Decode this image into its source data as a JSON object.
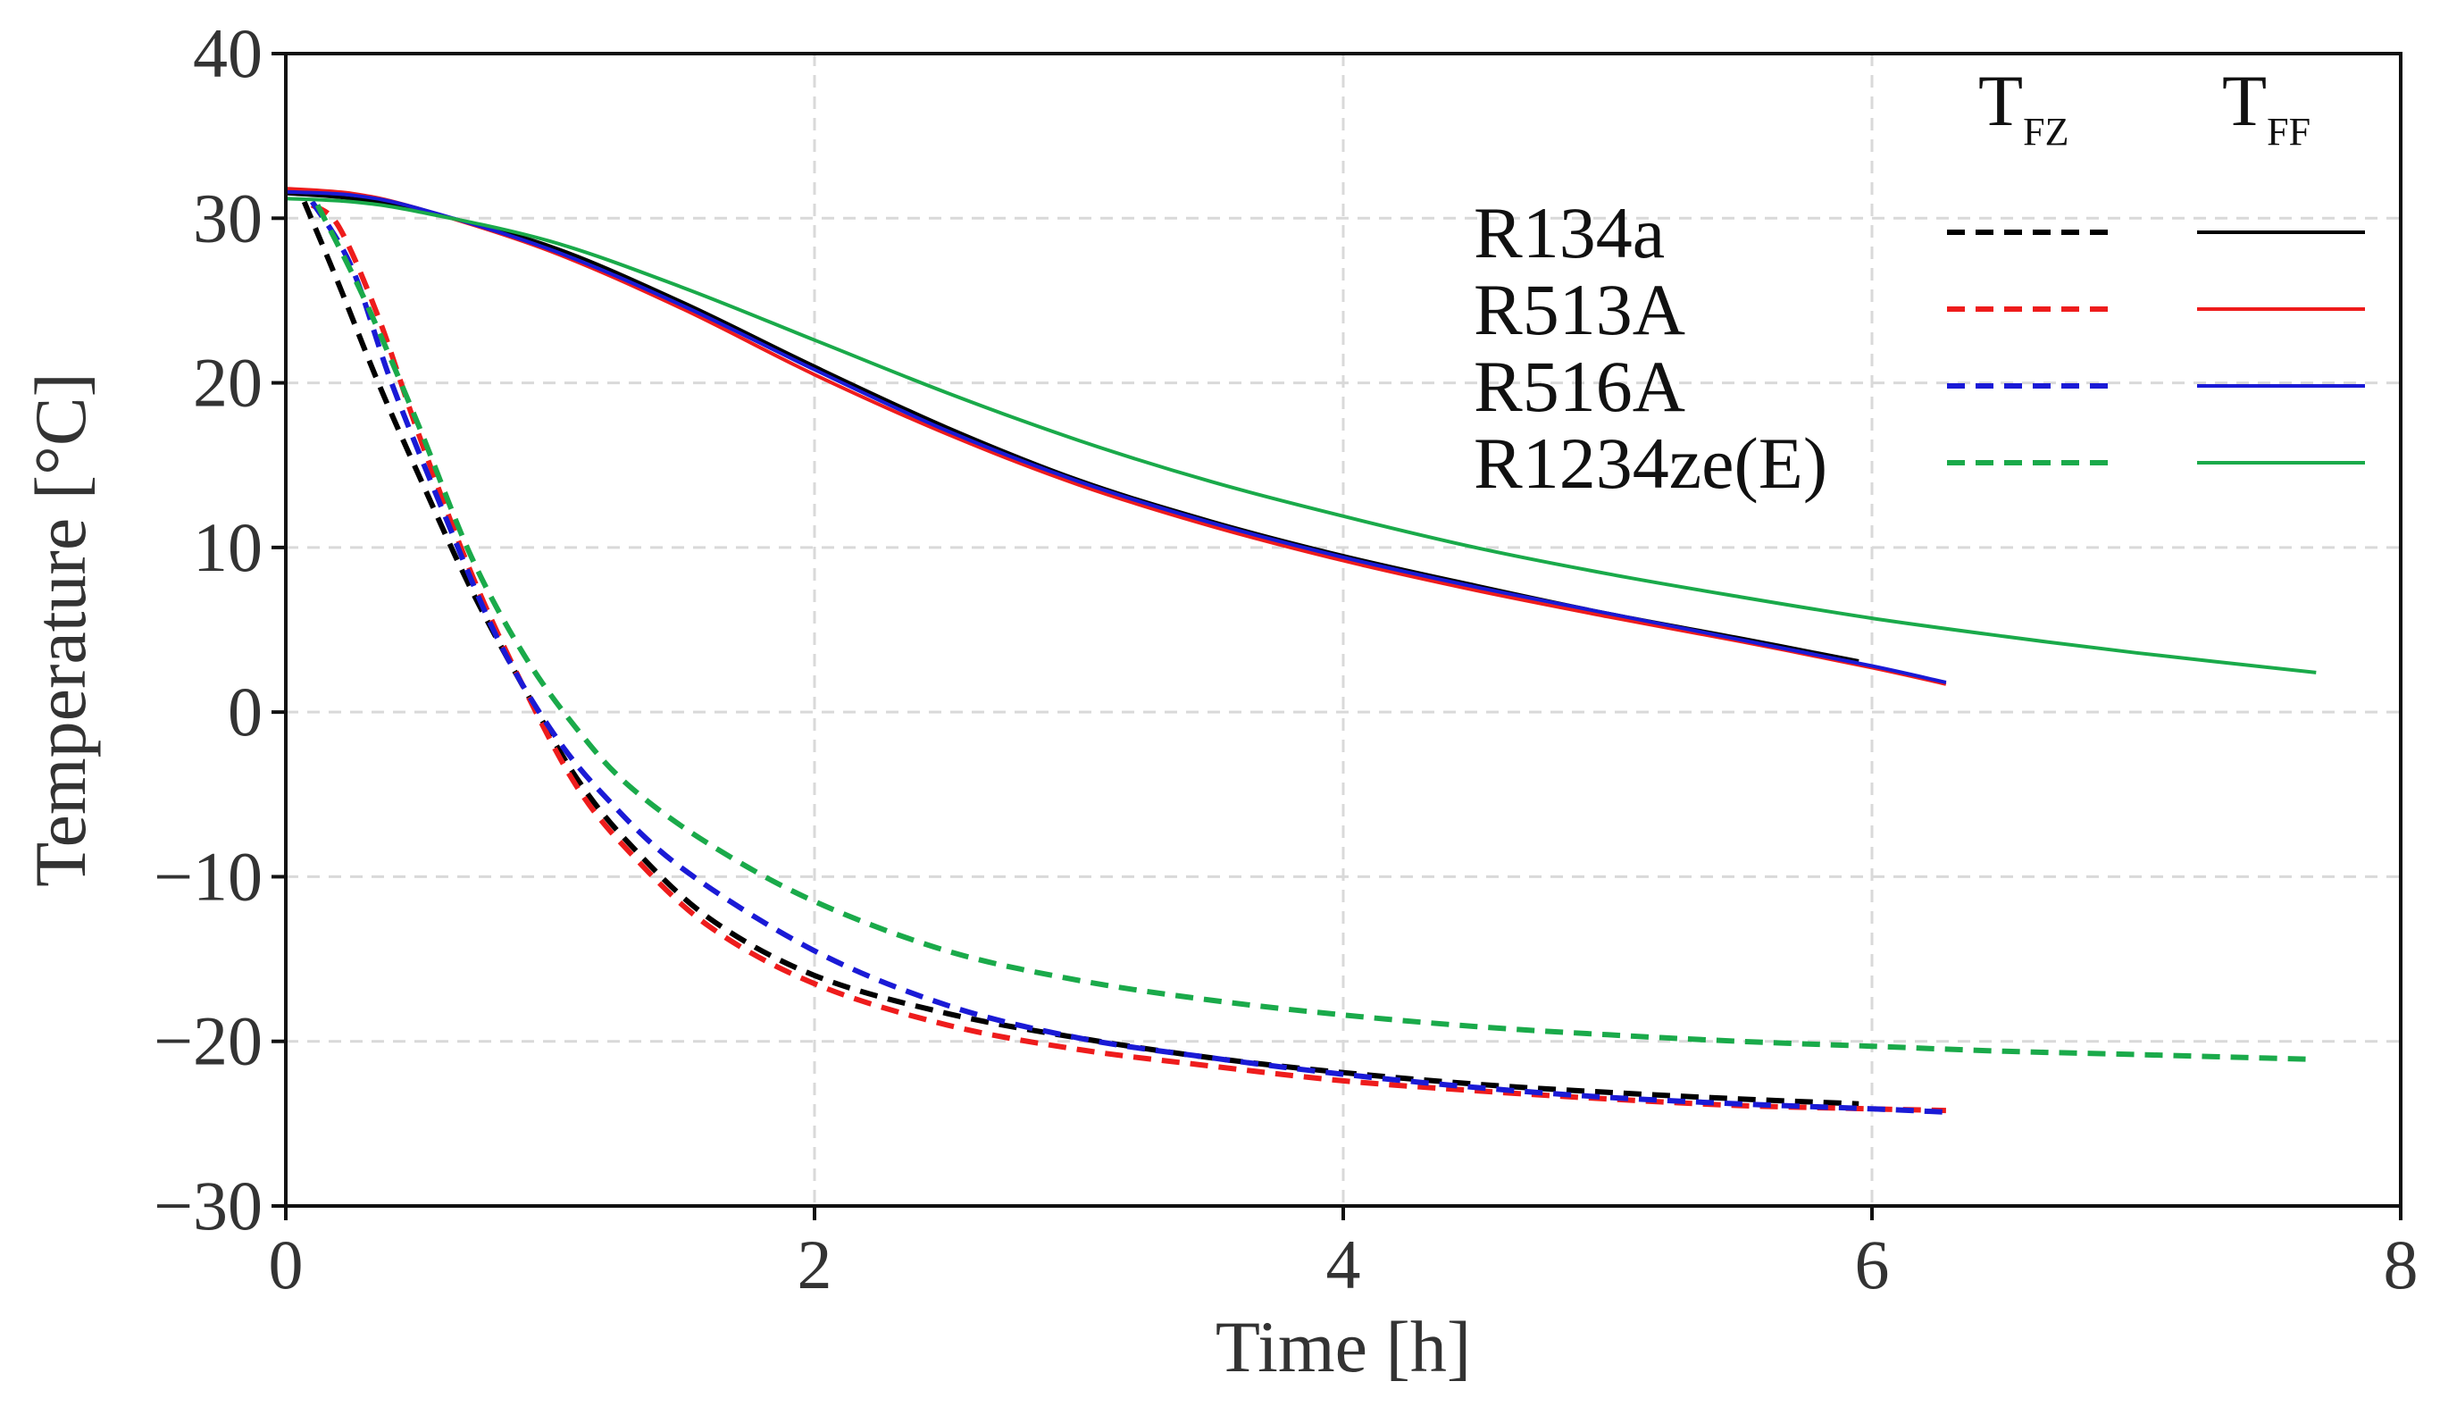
{
  "chart_data": {
    "type": "line",
    "title": "",
    "xlabel": "Time [h]",
    "ylabel": "Temperature [°C]",
    "xlim": [
      0,
      8
    ],
    "ylim": [
      -30,
      40
    ],
    "xticks": [
      0,
      2,
      4,
      6,
      8
    ],
    "xtick_labels": [
      "0",
      "2",
      "4",
      "6",
      "8"
    ],
    "yticks": [
      -30,
      -20,
      -10,
      0,
      10,
      20,
      30,
      40
    ],
    "ytick_labels": [
      "−30",
      "−20",
      "−10",
      "0",
      "10",
      "20",
      "30",
      "40"
    ],
    "grid": true,
    "legend": {
      "placement": "top-right",
      "column_headers": [
        {
          "main": "T",
          "sub": "FZ",
          "style": "dashed"
        },
        {
          "main": "T",
          "sub": "FF",
          "style": "solid"
        }
      ],
      "entries": [
        "R134a",
        "R513A",
        "R516A",
        "R1234ze(E)"
      ]
    },
    "series": [
      {
        "name": "R134a",
        "color": "#000000",
        "T_FF": {
          "x": [
            0,
            0.25,
            0.5,
            1,
            1.5,
            2,
            2.5,
            3,
            3.5,
            4,
            4.5,
            5,
            5.5,
            5.95
          ],
          "y": [
            31.5,
            31.2,
            30.5,
            28.3,
            24.9,
            21.0,
            17.3,
            14.1,
            11.6,
            9.5,
            7.7,
            6.0,
            4.5,
            3.1
          ]
        },
        "T_FZ": {
          "x": [
            0.07,
            0.2,
            0.35,
            0.5,
            0.7,
            0.9,
            1.1,
            1.3,
            1.6,
            2.0,
            2.5,
            3.0,
            3.5,
            4.0,
            4.5,
            5.0,
            5.5,
            5.95
          ],
          "y": [
            31.0,
            26.0,
            20.0,
            14.5,
            7.5,
            1.5,
            -4.0,
            -8.0,
            -12.5,
            -16.0,
            -18.3,
            -19.8,
            -21.0,
            -21.9,
            -22.6,
            -23.1,
            -23.5,
            -23.8
          ]
        }
      },
      {
        "name": "R513A",
        "color": "#ee1c1c",
        "T_FF": {
          "x": [
            0,
            0.25,
            0.5,
            1,
            1.5,
            2,
            2.5,
            3,
            3.5,
            4,
            4.5,
            5,
            5.5,
            6,
            6.28
          ],
          "y": [
            31.8,
            31.5,
            30.6,
            28.0,
            24.5,
            20.5,
            16.9,
            13.8,
            11.3,
            9.2,
            7.4,
            5.8,
            4.3,
            2.7,
            1.7
          ]
        },
        "T_FZ": {
          "x": [
            0.1,
            0.2,
            0.35,
            0.5,
            0.7,
            0.9,
            1.1,
            1.3,
            1.6,
            2.0,
            2.5,
            3.0,
            3.5,
            4.0,
            4.5,
            5.0,
            5.5,
            6.0,
            6.28
          ],
          "y": [
            30.8,
            29.5,
            24.0,
            17.0,
            8.5,
            1.5,
            -4.5,
            -8.5,
            -13.0,
            -16.5,
            -19.0,
            -20.5,
            -21.5,
            -22.4,
            -23.0,
            -23.5,
            -23.9,
            -24.1,
            -24.2
          ]
        }
      },
      {
        "name": "R516A",
        "color": "#1a1ad6",
        "T_FF": {
          "x": [
            0,
            0.25,
            0.5,
            1,
            1.5,
            2,
            2.5,
            3,
            3.5,
            4,
            4.5,
            5,
            5.5,
            6,
            6.28
          ],
          "y": [
            31.6,
            31.4,
            30.6,
            28.1,
            24.7,
            20.8,
            17.1,
            14.0,
            11.5,
            9.4,
            7.6,
            6.0,
            4.4,
            2.8,
            1.8
          ]
        },
        "T_FZ": {
          "x": [
            0.1,
            0.25,
            0.4,
            0.6,
            0.8,
            1.0,
            1.2,
            1.5,
            2.0,
            2.5,
            3.0,
            3.5,
            4.0,
            4.5,
            5.0,
            5.5,
            6.0,
            6.28
          ],
          "y": [
            31.0,
            27.0,
            20.0,
            12.0,
            4.5,
            -1.0,
            -5.0,
            -9.5,
            -14.5,
            -17.8,
            -19.8,
            -21.0,
            -22.0,
            -22.8,
            -23.4,
            -23.8,
            -24.1,
            -24.3
          ]
        }
      },
      {
        "name": "R1234ze(E)",
        "color": "#1aaa4a",
        "T_FF": {
          "x": [
            0,
            0.25,
            0.5,
            1,
            1.5,
            2,
            2.5,
            3,
            3.5,
            4,
            4.5,
            5,
            5.5,
            6,
            6.5,
            7,
            7.68
          ],
          "y": [
            31.2,
            31.0,
            30.4,
            28.6,
            25.8,
            22.6,
            19.4,
            16.5,
            14.0,
            11.9,
            10.0,
            8.4,
            7.0,
            5.7,
            4.6,
            3.6,
            2.4
          ]
        },
        "T_FZ": {
          "x": [
            0.12,
            0.3,
            0.5,
            0.7,
            0.9,
            1.1,
            1.3,
            1.6,
            2.0,
            2.5,
            3.0,
            3.5,
            4.0,
            4.5,
            5.0,
            5.5,
            6.0,
            6.5,
            7.0,
            7.68
          ],
          "y": [
            30.8,
            25.0,
            17.5,
            9.5,
            3.5,
            -1.0,
            -4.5,
            -8.0,
            -11.5,
            -14.5,
            -16.3,
            -17.5,
            -18.4,
            -19.1,
            -19.6,
            -20.0,
            -20.3,
            -20.6,
            -20.8,
            -21.1
          ]
        }
      }
    ]
  }
}
